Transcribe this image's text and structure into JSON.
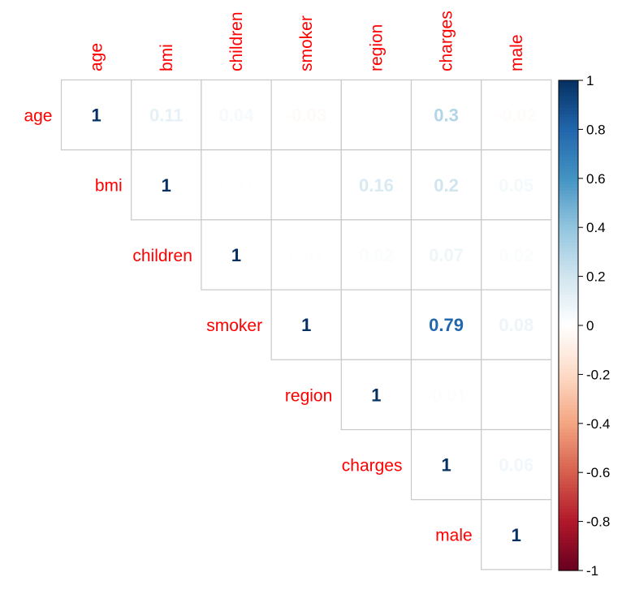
{
  "chart_data": {
    "type": "heatmap",
    "layout": "upper-triangle correlation matrix",
    "variables": [
      "age",
      "bmi",
      "children",
      "smoker",
      "region",
      "charges",
      "male"
    ],
    "matrix": [
      [
        1,
        0.11,
        0.04,
        -0.03,
        0.0,
        0.3,
        -0.02
      ],
      [
        0.11,
        1,
        0.01,
        0.0,
        0.16,
        0.2,
        0.05
      ],
      [
        0.04,
        0.01,
        1,
        0.01,
        0.02,
        0.07,
        0.02
      ],
      [
        -0.03,
        0.0,
        0.01,
        1,
        0.0,
        0.79,
        0.08
      ],
      [
        0.0,
        0.16,
        0.02,
        0.0,
        1,
        -0.01,
        0.0
      ],
      [
        0.3,
        0.2,
        0.07,
        0.79,
        -0.01,
        1,
        0.06
      ],
      [
        -0.02,
        0.05,
        0.02,
        0.08,
        0.0,
        0.06,
        1
      ]
    ],
    "labels": {
      "0": {
        "0": "1",
        "1": "0.11",
        "2": "0.04",
        "3": "-0.03",
        "5": "0.3",
        "6": "-0.02"
      },
      "1": {
        "1": "1",
        "2": "0.01",
        "4": "0.16",
        "5": "0.2",
        "6": "0.05"
      },
      "2": {
        "2": "1",
        "3": "0.01",
        "4": "0.02",
        "5": "0.07",
        "6": "0.02"
      },
      "3": {
        "3": "1",
        "4": "0",
        "5": "0.79",
        "6": "0.08"
      },
      "4": {
        "4": "1",
        "5": "-0.01",
        "6": "0"
      },
      "5": {
        "5": "1",
        "6": "0.06"
      },
      "6": {
        "6": "1"
      }
    },
    "colorbar": {
      "range": [
        -1,
        1
      ],
      "ticks": [
        "1",
        "0.8",
        "0.6",
        "0.4",
        "0.2",
        "0",
        "-0.2",
        "-0.4",
        "-0.6",
        "-0.8",
        "-1"
      ],
      "palette": [
        "#67001F",
        "#B2182B",
        "#D6604D",
        "#F4A582",
        "#FDDBC7",
        "#FFFFFF",
        "#D1E5F0",
        "#92C5DE",
        "#4393C3",
        "#2166AC",
        "#053061"
      ]
    },
    "label_color": "#FF0000",
    "grid": true
  }
}
